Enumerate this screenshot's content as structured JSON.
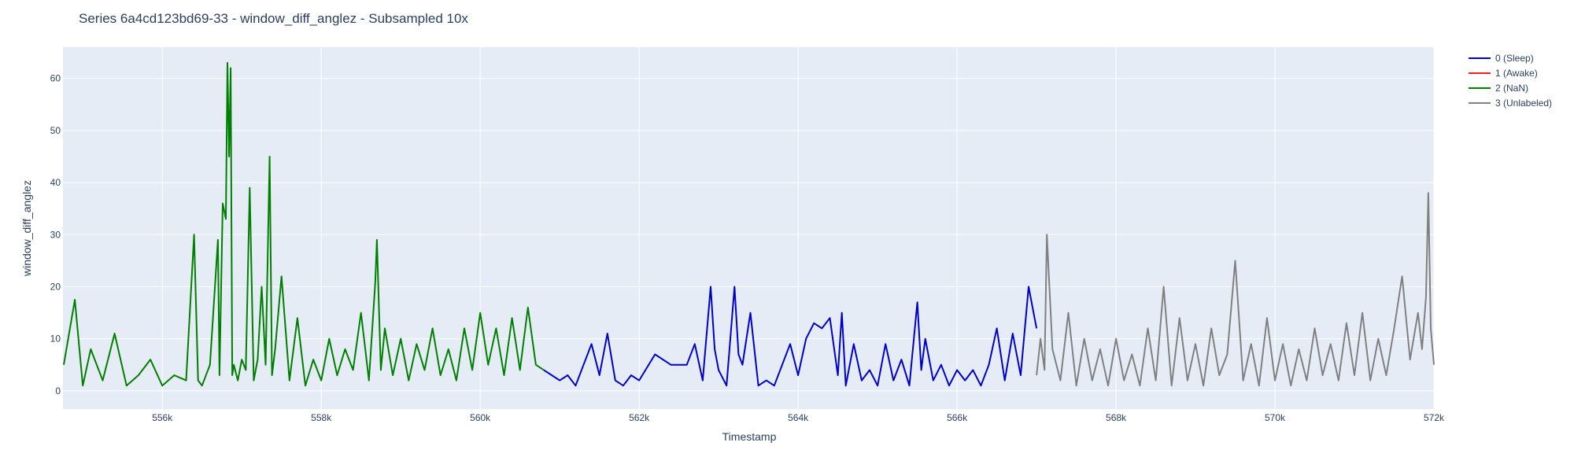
{
  "chart_data": {
    "type": "line",
    "title": "Series 6a4cd123bd69-33 - window_diff_anglez - Subsampled 10x",
    "xlabel": "Timestamp",
    "ylabel": "window_diff_anglez",
    "xlim": [
      554750,
      572000
    ],
    "ylim": [
      -3.5,
      66
    ],
    "x_ticks": [
      556000,
      558000,
      560000,
      562000,
      564000,
      566000,
      568000,
      570000,
      572000
    ],
    "x_tick_labels": [
      "556k",
      "558k",
      "560k",
      "562k",
      "564k",
      "566k",
      "568k",
      "570k",
      "572k"
    ],
    "y_ticks": [
      0,
      10,
      20,
      30,
      40,
      50,
      60
    ],
    "y_tick_labels": [
      "0",
      "10",
      "20",
      "30",
      "40",
      "50",
      "60"
    ],
    "grid": true,
    "legend_position": "top-right",
    "legend": [
      {
        "name": "0 (Sleep)",
        "color": "#0000cc"
      },
      {
        "name": "1 (Awake)",
        "color": "#ee2222"
      },
      {
        "name": "2 (NaN)",
        "color": "#008000"
      },
      {
        "name": "3 (Unlabeled)",
        "color": "#808080"
      }
    ],
    "series": [
      {
        "name": "2 (NaN)",
        "color": "#008000",
        "x": [
          554760,
          554900,
          555000,
          555100,
          555250,
          555400,
          555550,
          555700,
          555850,
          556000,
          556150,
          556300,
          556400,
          556450,
          556500,
          556600,
          556700,
          556720,
          556760,
          556800,
          556820,
          556840,
          556860,
          556880,
          556900,
          556950,
          557000,
          557050,
          557100,
          557150,
          557200,
          557250,
          557300,
          557350,
          557380,
          557420,
          557500,
          557600,
          557700,
          557800,
          557900,
          558000,
          558100,
          558200,
          558300,
          558400,
          558500,
          558600,
          558680,
          558700,
          558750,
          558800,
          558900,
          559000,
          559100,
          559200,
          559300,
          559400,
          559500,
          559600,
          559700,
          559800,
          559900,
          560000,
          560100,
          560200,
          560300,
          560400,
          560500,
          560600,
          560700,
          560800
        ],
        "y": [
          5,
          17.5,
          1,
          8,
          2,
          11,
          1,
          3,
          6,
          1,
          3,
          2,
          30,
          2,
          1,
          5,
          29,
          3,
          36,
          33,
          63,
          45,
          62,
          3,
          5,
          2,
          6,
          4,
          39,
          2,
          6,
          20,
          5,
          45,
          3,
          8,
          22,
          2,
          14,
          1,
          6,
          2,
          10,
          3,
          8,
          4,
          15,
          2,
          21,
          29,
          4,
          12,
          3,
          10,
          2,
          9,
          4,
          12,
          3,
          8,
          2,
          12,
          4,
          15,
          5,
          12,
          3,
          14,
          4,
          16,
          5,
          4
        ]
      },
      {
        "name": "0 (Sleep)",
        "color": "#0000cc",
        "x": [
          560800,
          560900,
          561000,
          561100,
          561200,
          561300,
          561400,
          561500,
          561600,
          561700,
          561800,
          561900,
          562000,
          562200,
          562400,
          562600,
          562700,
          562800,
          562900,
          562950,
          563000,
          563100,
          563200,
          563250,
          563300,
          563400,
          563500,
          563600,
          563700,
          563800,
          563900,
          564000,
          564100,
          564200,
          564300,
          564400,
          564500,
          564550,
          564600,
          564700,
          564800,
          564900,
          565000,
          565100,
          565200,
          565300,
          565400,
          565500,
          565550,
          565600,
          565700,
          565800,
          565900,
          566000,
          566100,
          566200,
          566300,
          566400,
          566500,
          566600,
          566700,
          566800,
          566900,
          567000
        ],
        "y": [
          4,
          3,
          2,
          3,
          1,
          5,
          9,
          3,
          11,
          2,
          1,
          3,
          2,
          7,
          5,
          5,
          9,
          2,
          20,
          8,
          4,
          1,
          20,
          7,
          5,
          15,
          1,
          2,
          1,
          5,
          9,
          3,
          10,
          13,
          12,
          14,
          3,
          15,
          1,
          9,
          2,
          4,
          1,
          9,
          2,
          6,
          1,
          17,
          4,
          10,
          2,
          5,
          1,
          4,
          2,
          4,
          1,
          5,
          12,
          2,
          11,
          3,
          20,
          12
        ]
      },
      {
        "name": "3 (Unlabeled)",
        "color": "#808080",
        "x": [
          567000,
          567050,
          567100,
          567130,
          567200,
          567300,
          567400,
          567500,
          567600,
          567700,
          567800,
          567900,
          568000,
          568100,
          568200,
          568300,
          568400,
          568500,
          568600,
          568700,
          568800,
          568900,
          569000,
          569100,
          569200,
          569300,
          569400,
          569500,
          569600,
          569700,
          569800,
          569900,
          570000,
          570100,
          570200,
          570300,
          570400,
          570500,
          570600,
          570700,
          570800,
          570900,
          571000,
          571100,
          571200,
          571300,
          571400,
          571500,
          571600,
          571700,
          571800,
          571850,
          571900,
          571930,
          571960,
          572000
        ],
        "y": [
          3,
          10,
          4,
          30,
          8,
          2,
          15,
          1,
          10,
          2,
          8,
          1,
          10,
          2,
          7,
          1,
          12,
          2,
          20,
          1,
          14,
          2,
          9,
          1,
          12,
          3,
          7,
          25,
          2,
          9,
          1,
          14,
          2,
          9,
          1,
          8,
          2,
          12,
          3,
          9,
          2,
          13,
          3,
          15,
          2,
          10,
          3,
          12,
          22,
          6,
          15,
          8,
          18,
          38,
          12,
          5
        ]
      }
    ]
  }
}
